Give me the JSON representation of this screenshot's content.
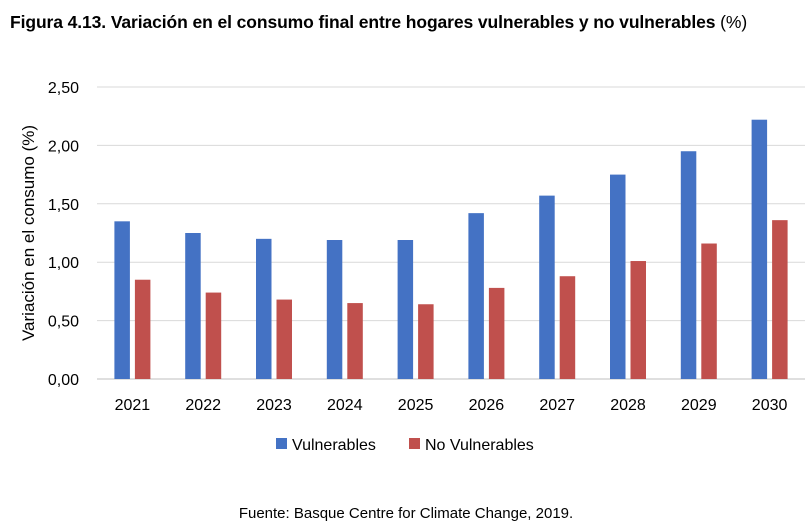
{
  "chart_data": {
    "type": "bar",
    "title": "Figura 4.13. Variación en el consumo final entre hogares vulnerables y no vulnerables",
    "title_unit": "(%)",
    "ylabel": "Variación en el consumo (%)",
    "xlabel": "",
    "ylim": [
      0,
      2.5
    ],
    "yticks": [
      "0,00",
      "0,50",
      "1,00",
      "1,50",
      "2,00",
      "2,50"
    ],
    "ytick_values": [
      0,
      0.5,
      1.0,
      1.5,
      2.0,
      2.5
    ],
    "categories": [
      "2021",
      "2022",
      "2023",
      "2024",
      "2025",
      "2026",
      "2027",
      "2028",
      "2029",
      "2030"
    ],
    "series": [
      {
        "name": "Vulnerables",
        "color": "#4472C4",
        "values": [
          1.35,
          1.25,
          1.2,
          1.19,
          1.19,
          1.42,
          1.57,
          1.75,
          1.95,
          2.22
        ]
      },
      {
        "name": "No Vulnerables",
        "color": "#C0504D",
        "values": [
          0.85,
          0.74,
          0.68,
          0.65,
          0.64,
          0.78,
          0.88,
          1.01,
          1.16,
          1.36
        ]
      }
    ],
    "grid": true,
    "legend_position": "bottom"
  },
  "source": "Fuente: Basque Centre for Climate Change, 2019."
}
